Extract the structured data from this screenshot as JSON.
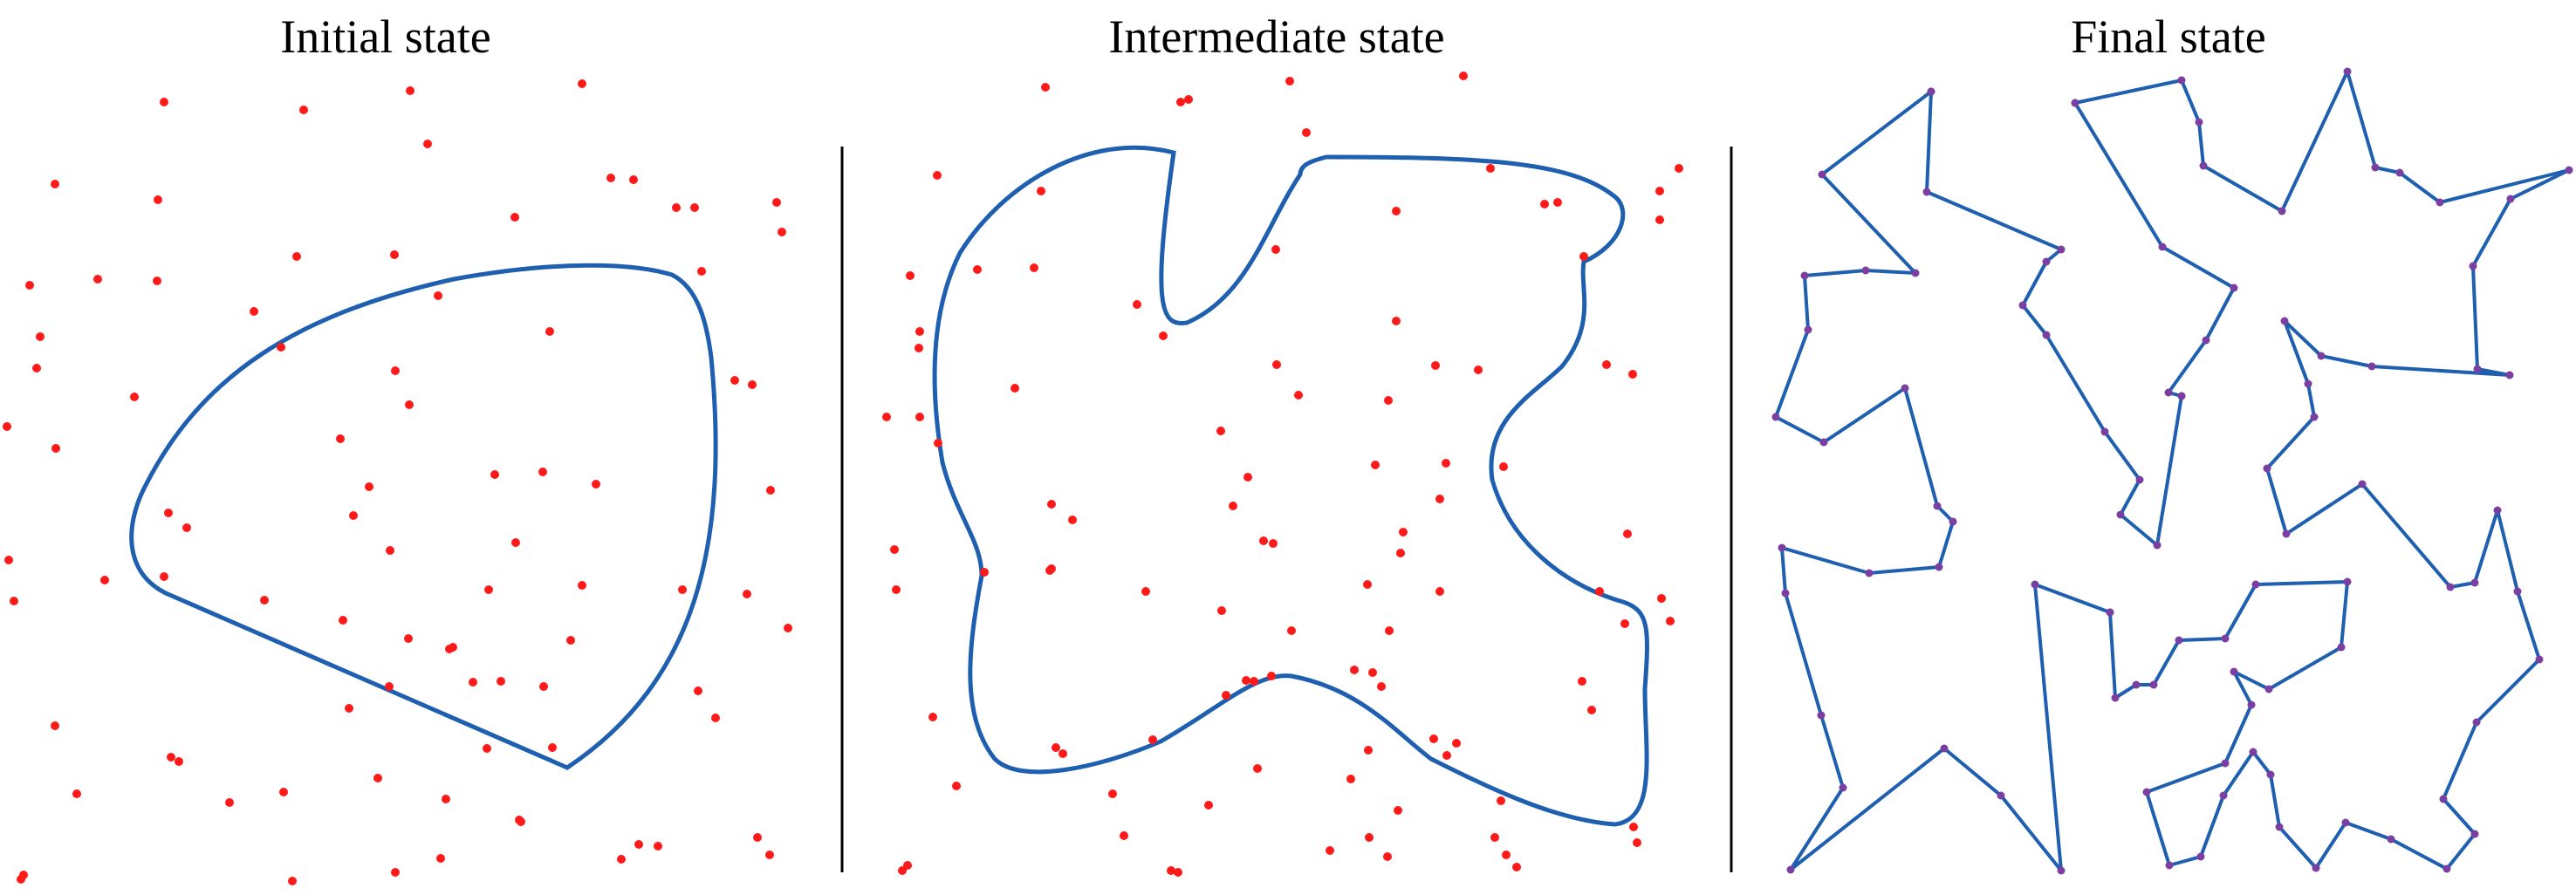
{
  "panels": [
    {
      "title": "Initial state"
    },
    {
      "title": "Intermediate state"
    },
    {
      "title": "Final state"
    }
  ],
  "colors": {
    "point": "#ff1a1a",
    "curve": "#1f5fb0",
    "divider": "#000000",
    "vertex": "#7a3fa0"
  }
}
